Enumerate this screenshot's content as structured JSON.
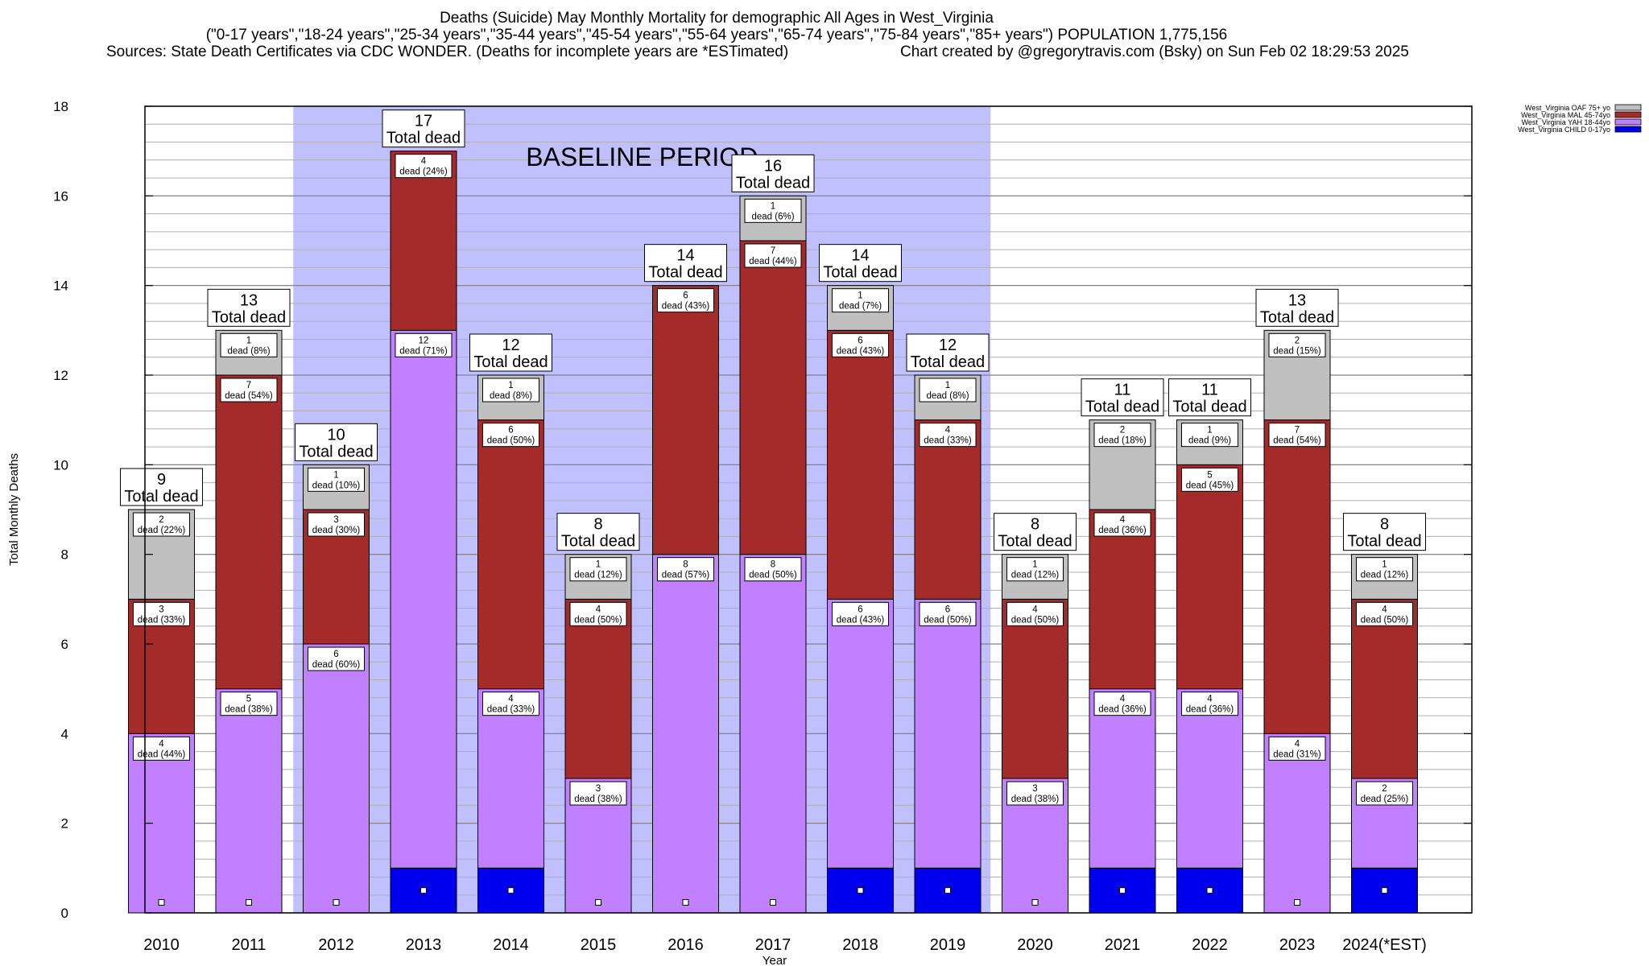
{
  "header": {
    "title": "Deaths (Suicide) May Monthly Mortality for demographic All Ages in West_Virginia",
    "subtitle": "(\"0-17 years\",\"18-24 years\",\"25-34 years\",\"35-44 years\",\"45-54 years\",\"55-64 years\",\"65-74 years\",\"75-84 years\",\"85+ years\") POPULATION 1,775,156",
    "sources": "Sources: State Death Certificates via CDC WONDER. (Deaths for incomplete years are *ESTimated)",
    "credit": "Chart created by @gregorytravis.com (Bsky) on Sun Feb 02 18:29:53 2025"
  },
  "chart_data": {
    "type": "bar",
    "stacked": true,
    "xlabel": "Year",
    "ylabel": "Total Monthly Deaths",
    "ylim": [
      0,
      18
    ],
    "yticks": [
      0,
      2,
      4,
      6,
      8,
      10,
      12,
      14,
      16,
      18
    ],
    "grid": true,
    "legend_position": "top-right, outside plot",
    "categories": [
      "2010",
      "2011",
      "2012",
      "2013",
      "2014",
      "2015",
      "2016",
      "2017",
      "2018",
      "2019",
      "2020",
      "2021",
      "2022",
      "2023",
      "2024(*EST)"
    ],
    "series": [
      {
        "name": "West_Virginia CHILD 0-17yo",
        "color": "#0000ee",
        "values": [
          0,
          0,
          0,
          1,
          1,
          0,
          0,
          0,
          1,
          1,
          0,
          1,
          1,
          0,
          1
        ]
      },
      {
        "name": "West_Virginia YAH 18-44yo",
        "color": "#c080ff",
        "values": [
          4,
          5,
          6,
          12,
          4,
          3,
          8,
          8,
          6,
          6,
          3,
          4,
          4,
          4,
          2
        ],
        "labels": [
          "44%",
          "38%",
          "60%",
          "71%",
          "33%",
          "38%",
          "57%",
          "50%",
          "43%",
          "50%",
          "38%",
          "36%",
          "36%",
          "31%",
          "25%"
        ]
      },
      {
        "name": "West_Virginia MAL 45-74yo",
        "color": "#a52a2a",
        "values": [
          3,
          7,
          3,
          4,
          6,
          4,
          6,
          7,
          6,
          4,
          4,
          4,
          5,
          7,
          4
        ],
        "labels": [
          "33%",
          "54%",
          "30%",
          "24%",
          "50%",
          "50%",
          "43%",
          "44%",
          "43%",
          "33%",
          "50%",
          "36%",
          "45%",
          "54%",
          "50%"
        ]
      },
      {
        "name": "West_Virginia OAF 75+ yo",
        "color": "#c0c0c0",
        "values": [
          2,
          1,
          1,
          0,
          1,
          1,
          0,
          1,
          1,
          1,
          1,
          2,
          1,
          2,
          1
        ],
        "labels": [
          "22%",
          "8%",
          "10%",
          "",
          "8%",
          "12%",
          "",
          "6%",
          "7%",
          "8%",
          "12%",
          "18%",
          "9%",
          "15%",
          "12%"
        ]
      }
    ],
    "totals": [
      9,
      13,
      10,
      17,
      12,
      8,
      14,
      16,
      14,
      12,
      8,
      11,
      11,
      13,
      8
    ],
    "total_suffix": "Total dead",
    "segment_word": "dead",
    "baseline": {
      "label": "BASELINE PERIOD",
      "from": "2012",
      "to": "2019",
      "color": "#c0c0ff"
    }
  }
}
